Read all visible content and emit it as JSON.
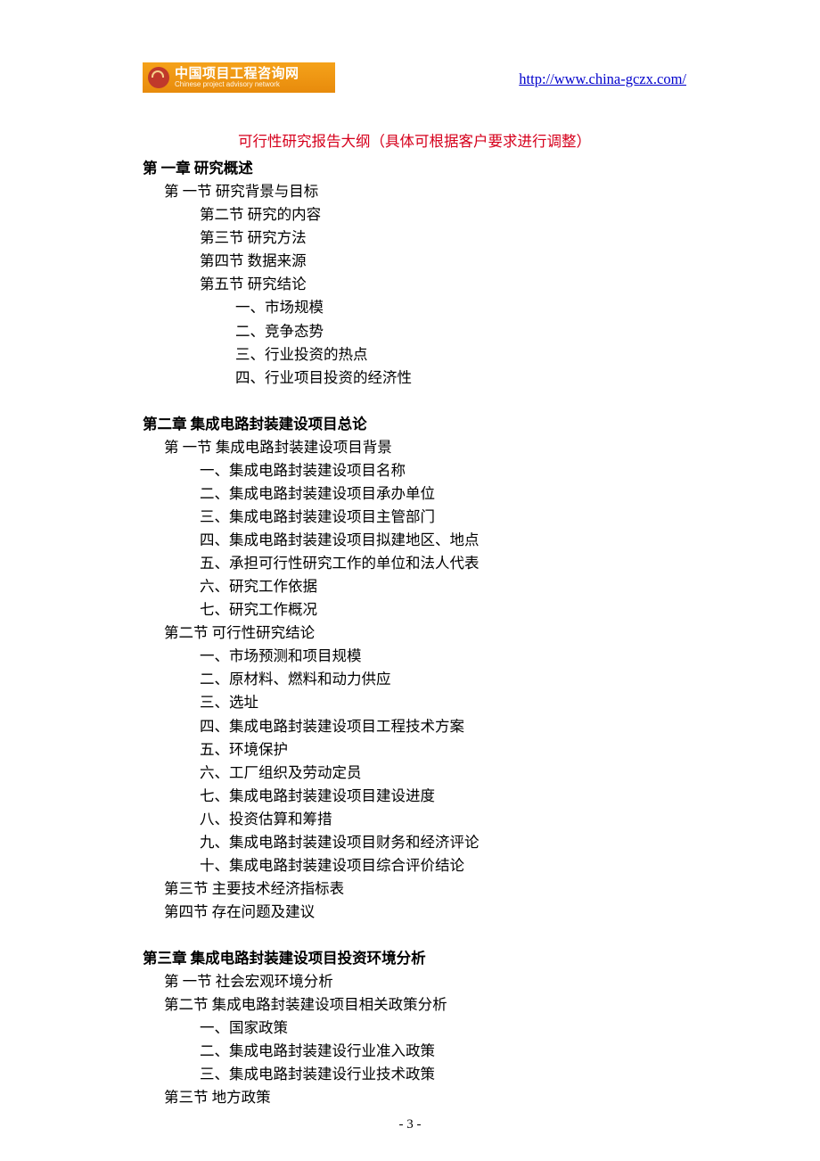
{
  "header": {
    "logo_cn": "中国项目工程咨询网",
    "logo_en": "Chinese project advisory network",
    "url": "http://www.china-gczx.com/"
  },
  "outline_title": "可行性研究报告大纲（具体可根据客户要求进行调整）",
  "chapter1": {
    "title": "第 一章  研究概述",
    "s1": "第 一节  研究背景与目标",
    "s2": "第二节  研究的内容",
    "s3": "第三节  研究方法",
    "s4": "第四节  数据来源",
    "s5": "第五节  研究结论",
    "i1": "一、市场规模",
    "i2": "二、竞争态势",
    "i3": "三、行业投资的热点",
    "i4": "四、行业项目投资的经济性"
  },
  "chapter2": {
    "title": "第二章  集成电路封装建设项目总论",
    "s1": "第 一节  集成电路封装建设项目背景",
    "s1i1": "一、集成电路封装建设项目名称",
    "s1i2": "二、集成电路封装建设项目承办单位",
    "s1i3": "三、集成电路封装建设项目主管部门",
    "s1i4": "四、集成电路封装建设项目拟建地区、地点",
    "s1i5": "五、承担可行性研究工作的单位和法人代表",
    "s1i6": "六、研究工作依据",
    "s1i7": "七、研究工作概况",
    "s2": "第二节   可行性研究结论",
    "s2i1": "一、市场预测和项目规模",
    "s2i2": "二、原材料、燃料和动力供应",
    "s2i3": "三、选址",
    "s2i4": "四、集成电路封装建设项目工程技术方案",
    "s2i5": "五、环境保护",
    "s2i6": "六、工厂组织及劳动定员",
    "s2i7": "七、集成电路封装建设项目建设进度",
    "s2i8": "八、投资估算和筹措",
    "s2i9": "九、集成电路封装建设项目财务和经济评论",
    "s2i10": "十、集成电路封装建设项目综合评价结论",
    "s3": "第三节   主要技术经济指标表",
    "s4": "第四节   存在问题及建议"
  },
  "chapter3": {
    "title": "第三章  集成电路封装建设项目投资环境分析",
    "s1": "第 一节   社会宏观环境分析",
    "s2": "第二节  集成电路封装建设项目相关政策分析",
    "s2i1": "一、国家政策",
    "s2i2": "二、集成电路封装建设行业准入政策",
    "s2i3": "三、集成电路封装建设行业技术政策",
    "s3": "第三节   地方政策"
  },
  "page_number": "- 3 -"
}
